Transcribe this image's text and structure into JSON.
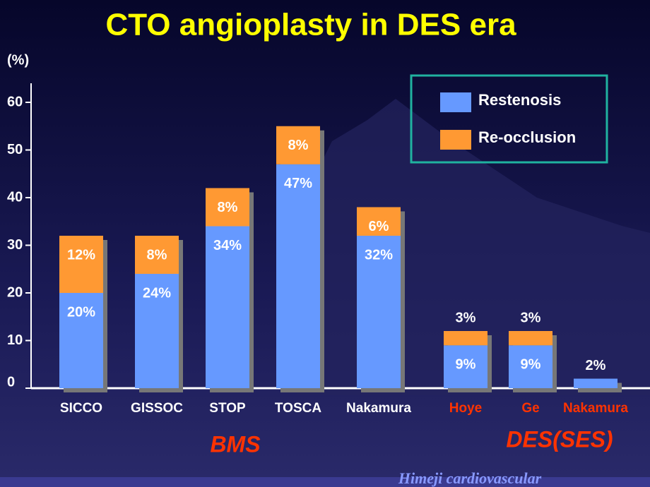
{
  "chart_data": {
    "type": "stacked_bar",
    "title": "CTO angioplasty in DES era",
    "y_label": "(%)",
    "categories": [
      "SICCO",
      "GISSOC",
      "STOP",
      "TOSCA",
      "Nakamura",
      "Hoye",
      "Ge",
      "Nakamura"
    ],
    "category_colors": [
      "#ffffff",
      "#ffffff",
      "#ffffff",
      "#ffffff",
      "#ffffff",
      "#ff3300",
      "#ff3300",
      "#ff3300"
    ],
    "groups": [
      {
        "label": "BMS",
        "color": "#ff3300"
      },
      {
        "label": "DES(SES)",
        "color": "#ff3300"
      }
    ],
    "series": [
      {
        "name": "Restenosis",
        "color": "#6699ff",
        "values": [
          20,
          24,
          34,
          47,
          32,
          9,
          9,
          2
        ],
        "value_labels": [
          "20%",
          "24%",
          "34%",
          "47%",
          "32%",
          "9%",
          "9%",
          "2%"
        ]
      },
      {
        "name": "Re-occlusion",
        "color": "#ff9933",
        "values": [
          12,
          8,
          8,
          8,
          6,
          3,
          3,
          null
        ],
        "value_labels": [
          "12%",
          "8%",
          "8%",
          "8%",
          "6%",
          "3%",
          "3%",
          null
        ]
      }
    ],
    "ylim": [
      0,
      64
    ],
    "yticks": [
      0,
      10,
      20,
      30,
      40,
      50,
      60
    ],
    "legend": "top-right",
    "footer": "Himeji cardiovascular"
  }
}
